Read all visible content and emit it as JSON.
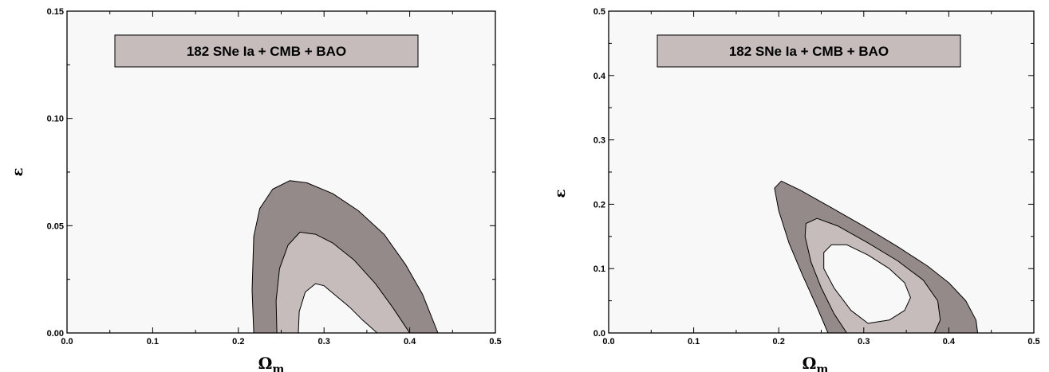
{
  "chart_data": [
    {
      "type": "contour",
      "annotation": "182 SNe Ia + CMB + BAO",
      "xlabel": "Ω",
      "xlabel_sub": "m",
      "ylabel": "ε",
      "xlim": [
        0.0,
        0.5
      ],
      "ylim": [
        0.0,
        0.15
      ],
      "xticks": [
        0.0,
        0.1,
        0.2,
        0.3,
        0.4,
        0.5
      ],
      "xtick_labels": [
        "0.0",
        "0.1",
        "0.2",
        "0.3",
        "0.4",
        "0.5"
      ],
      "yticks": [
        0.0,
        0.05,
        0.1,
        0.15
      ],
      "ytick_labels": [
        "0.00",
        "0.05",
        "0.10",
        "0.15"
      ],
      "yminor": [
        0.025,
        0.075,
        0.125
      ],
      "contours": [
        {
          "level": "outer",
          "color": "#958a8a",
          "points": [
            [
              0.218,
              0.0
            ],
            [
              0.216,
              0.02
            ],
            [
              0.218,
              0.045
            ],
            [
              0.225,
              0.058
            ],
            [
              0.24,
              0.067
            ],
            [
              0.26,
              0.071
            ],
            [
              0.28,
              0.07
            ],
            [
              0.31,
              0.065
            ],
            [
              0.34,
              0.057
            ],
            [
              0.37,
              0.046
            ],
            [
              0.395,
              0.032
            ],
            [
              0.415,
              0.018
            ],
            [
              0.433,
              0.0
            ]
          ]
        },
        {
          "level": "middle",
          "color": "#c6bcbc",
          "points": [
            [
              0.245,
              0.0
            ],
            [
              0.244,
              0.015
            ],
            [
              0.248,
              0.03
            ],
            [
              0.258,
              0.041
            ],
            [
              0.272,
              0.047
            ],
            [
              0.29,
              0.046
            ],
            [
              0.31,
              0.042
            ],
            [
              0.335,
              0.034
            ],
            [
              0.36,
              0.023
            ],
            [
              0.38,
              0.012
            ],
            [
              0.4,
              0.0
            ]
          ]
        },
        {
          "level": "inner",
          "color": "#f8f8f8",
          "points": [
            [
              0.27,
              0.0
            ],
            [
              0.271,
              0.01
            ],
            [
              0.278,
              0.019
            ],
            [
              0.29,
              0.023
            ],
            [
              0.3,
              0.022
            ],
            [
              0.315,
              0.017
            ],
            [
              0.33,
              0.012
            ],
            [
              0.345,
              0.006
            ],
            [
              0.362,
              0.0
            ]
          ]
        }
      ]
    },
    {
      "type": "contour",
      "annotation": "182 SNe Ia + CMB + BAO",
      "xlabel": "Ω",
      "xlabel_sub": "m",
      "ylabel": "ε",
      "xlim": [
        0.0,
        0.5
      ],
      "ylim": [
        0.0,
        0.5
      ],
      "xticks": [
        0.0,
        0.1,
        0.2,
        0.3,
        0.4,
        0.5
      ],
      "xtick_labels": [
        "0.0",
        "0.1",
        "0.2",
        "0.3",
        "0.4",
        "0.5"
      ],
      "yticks": [
        0.0,
        0.1,
        0.2,
        0.3,
        0.4,
        0.5
      ],
      "ytick_labels": [
        "0.0",
        "0.1",
        "0.2",
        "0.3",
        "0.4",
        "0.5"
      ],
      "yminor": [
        0.05,
        0.15,
        0.25,
        0.35,
        0.45
      ],
      "contours": [
        {
          "level": "outer",
          "color": "#958a8a",
          "points": [
            [
              0.258,
              0.0
            ],
            [
              0.245,
              0.04
            ],
            [
              0.228,
              0.09
            ],
            [
              0.212,
              0.14
            ],
            [
              0.2,
              0.19
            ],
            [
              0.195,
              0.225
            ],
            [
              0.203,
              0.236
            ],
            [
              0.225,
              0.222
            ],
            [
              0.26,
              0.196
            ],
            [
              0.3,
              0.166
            ],
            [
              0.34,
              0.134
            ],
            [
              0.375,
              0.104
            ],
            [
              0.4,
              0.078
            ],
            [
              0.42,
              0.05
            ],
            [
              0.432,
              0.02
            ],
            [
              0.434,
              0.0
            ]
          ]
        },
        {
          "level": "middle",
          "color": "#c6bcbc",
          "points": [
            [
              0.28,
              0.0
            ],
            [
              0.265,
              0.03
            ],
            [
              0.25,
              0.07
            ],
            [
              0.238,
              0.11
            ],
            [
              0.231,
              0.15
            ],
            [
              0.232,
              0.17
            ],
            [
              0.245,
              0.178
            ],
            [
              0.27,
              0.166
            ],
            [
              0.305,
              0.14
            ],
            [
              0.34,
              0.112
            ],
            [
              0.37,
              0.082
            ],
            [
              0.387,
              0.05
            ],
            [
              0.39,
              0.02
            ],
            [
              0.383,
              0.0
            ]
          ]
        },
        {
          "level": "inner",
          "color": "#f8f8f8",
          "points": [
            [
              0.305,
              0.015
            ],
            [
              0.285,
              0.035
            ],
            [
              0.265,
              0.07
            ],
            [
              0.253,
              0.1
            ],
            [
              0.253,
              0.125
            ],
            [
              0.262,
              0.137
            ],
            [
              0.28,
              0.137
            ],
            [
              0.305,
              0.121
            ],
            [
              0.33,
              0.1
            ],
            [
              0.348,
              0.078
            ],
            [
              0.355,
              0.055
            ],
            [
              0.348,
              0.035
            ],
            [
              0.33,
              0.02
            ]
          ]
        }
      ]
    }
  ]
}
